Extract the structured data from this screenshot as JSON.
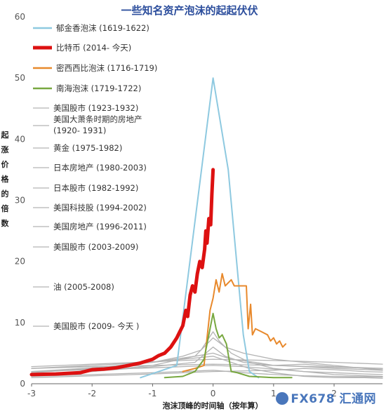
{
  "chart_data": {
    "type": "line",
    "title": "一些知名资产泡沫的起起伏伏",
    "xlabel": "泡沫顶峰的时间轴（按年算）",
    "ylabel": "起涨价格的倍数",
    "xlim": [
      -3,
      2.8
    ],
    "ylim": [
      0,
      60
    ],
    "x_ticks": [
      "-3",
      "-2",
      "-1",
      "0",
      "1",
      "2"
    ],
    "y_ticks": [
      "0",
      "10",
      "20",
      "30",
      "40",
      "50",
      "60"
    ],
    "grid": false,
    "legend_position": "left",
    "series": [
      {
        "name": "郁金香泡沫 (1619-1622)",
        "color": "#8ec9e0",
        "width": 2,
        "points": [
          [
            -1.2,
            1.0
          ],
          [
            -0.6,
            3.0
          ],
          [
            0.0,
            50.0
          ],
          [
            0.25,
            35.0
          ],
          [
            0.5,
            8.0
          ],
          [
            0.6,
            2.0
          ],
          [
            0.75,
            1.0
          ]
        ]
      },
      {
        "name": "比特币 (2014- 今天)",
        "color": "#dd1111",
        "width": 5,
        "points": [
          [
            -3.0,
            1.5
          ],
          [
            -2.6,
            1.6
          ],
          [
            -2.2,
            1.8
          ],
          [
            -2.0,
            2.3
          ],
          [
            -1.8,
            2.4
          ],
          [
            -1.6,
            2.6
          ],
          [
            -1.4,
            3.0
          ],
          [
            -1.2,
            3.4
          ],
          [
            -1.0,
            4.0
          ],
          [
            -0.9,
            4.6
          ],
          [
            -0.8,
            5.0
          ],
          [
            -0.7,
            6.0
          ],
          [
            -0.6,
            7.5
          ],
          [
            -0.55,
            8.5
          ],
          [
            -0.5,
            9.5
          ],
          [
            -0.45,
            12.0
          ],
          [
            -0.42,
            11.0
          ],
          [
            -0.38,
            14.5
          ],
          [
            -0.34,
            16.0
          ],
          [
            -0.3,
            15.0
          ],
          [
            -0.26,
            18.0
          ],
          [
            -0.22,
            20.0
          ],
          [
            -0.18,
            19.0
          ],
          [
            -0.14,
            22.0
          ],
          [
            -0.12,
            25.0
          ],
          [
            -0.1,
            23.0
          ],
          [
            -0.07,
            27.0
          ],
          [
            -0.04,
            26.0
          ],
          [
            -0.02,
            31.0
          ],
          [
            0.0,
            35.0
          ]
        ]
      },
      {
        "name": "密西西比泡沫 (1716-1719)",
        "color": "#e8892c",
        "width": 2,
        "points": [
          [
            -0.5,
            2.0
          ],
          [
            -0.3,
            2.5
          ],
          [
            -0.15,
            3.0
          ],
          [
            -0.05,
            12.0
          ],
          [
            0.0,
            14.0
          ],
          [
            0.05,
            17.0
          ],
          [
            0.1,
            15.0
          ],
          [
            0.15,
            18.0
          ],
          [
            0.2,
            16.0
          ],
          [
            0.3,
            17.0
          ],
          [
            0.35,
            16.0
          ],
          [
            0.55,
            16.0
          ],
          [
            0.58,
            9.0
          ],
          [
            0.62,
            13.0
          ],
          [
            0.65,
            8.0
          ],
          [
            0.7,
            9.0
          ],
          [
            0.8,
            8.5
          ],
          [
            0.9,
            8.0
          ],
          [
            0.95,
            7.0
          ],
          [
            1.0,
            7.5
          ],
          [
            1.05,
            6.5
          ],
          [
            1.1,
            7.0
          ],
          [
            1.15,
            6.0
          ],
          [
            1.2,
            6.5
          ]
        ]
      },
      {
        "name": "南海泡沫 (1719-1722)",
        "color": "#78a840",
        "width": 2,
        "points": [
          [
            -0.8,
            1.0
          ],
          [
            -0.5,
            1.2
          ],
          [
            -0.3,
            2.0
          ],
          [
            -0.15,
            4.0
          ],
          [
            -0.05,
            9.0
          ],
          [
            0.0,
            11.5
          ],
          [
            0.05,
            9.0
          ],
          [
            0.1,
            7.5
          ],
          [
            0.15,
            8.0
          ],
          [
            0.22,
            6.5
          ],
          [
            0.3,
            2.0
          ],
          [
            0.4,
            1.8
          ],
          [
            0.6,
            1.2
          ],
          [
            1.0,
            1.0
          ],
          [
            1.3,
            1.0
          ]
        ]
      },
      {
        "name": "美国股市 (1923-1932)",
        "color": "#b3b3b3",
        "width": 1.3,
        "points": [
          [
            -3.0,
            2.5
          ],
          [
            -2.0,
            3.0
          ],
          [
            -1.0,
            3.5
          ],
          [
            -0.5,
            4.0
          ],
          [
            0.0,
            4.5
          ],
          [
            0.3,
            3.5
          ],
          [
            0.6,
            2.5
          ],
          [
            1.0,
            1.8
          ],
          [
            1.5,
            1.2
          ],
          [
            2.0,
            1.0
          ],
          [
            2.5,
            1.0
          ],
          [
            2.8,
            0.9
          ]
        ]
      },
      {
        "name": "美国大萧条时期的房地产 (1920- 1931)",
        "color": "#b3b3b3",
        "width": 1.3,
        "points": [
          [
            -3.0,
            2.0
          ],
          [
            -2.0,
            2.3
          ],
          [
            -1.0,
            2.6
          ],
          [
            0.0,
            3.0
          ],
          [
            0.5,
            2.8
          ],
          [
            1.0,
            2.4
          ],
          [
            1.5,
            2.0
          ],
          [
            2.0,
            1.8
          ],
          [
            2.5,
            1.6
          ],
          [
            2.8,
            1.5
          ]
        ]
      },
      {
        "name": "黄金 (1975-1982)",
        "color": "#b3b3b3",
        "width": 1.3,
        "points": [
          [
            -3.0,
            1.5
          ],
          [
            -2.0,
            2.0
          ],
          [
            -1.0,
            3.0
          ],
          [
            -0.3,
            4.5
          ],
          [
            0.0,
            7.5
          ],
          [
            0.2,
            6.0
          ],
          [
            0.5,
            5.0
          ],
          [
            1.0,
            4.0
          ],
          [
            1.5,
            3.5
          ],
          [
            2.0,
            3.0
          ],
          [
            2.5,
            2.5
          ],
          [
            2.8,
            2.3
          ]
        ]
      },
      {
        "name": "日本房地产 (1980-2003)",
        "color": "#b3b3b3",
        "width": 1.3,
        "points": [
          [
            -3.0,
            2.8
          ],
          [
            -2.0,
            3.2
          ],
          [
            -1.0,
            3.6
          ],
          [
            0.0,
            4.0
          ],
          [
            1.0,
            3.8
          ],
          [
            2.0,
            3.5
          ],
          [
            2.8,
            3.2
          ]
        ]
      },
      {
        "name": "日本股市 (1982-1992)",
        "color": "#b3b3b3",
        "width": 1.3,
        "points": [
          [
            -3.0,
            2.0
          ],
          [
            -2.0,
            2.6
          ],
          [
            -1.0,
            3.5
          ],
          [
            -0.3,
            4.5
          ],
          [
            0.0,
            5.0
          ],
          [
            0.3,
            4.0
          ],
          [
            0.7,
            3.5
          ],
          [
            1.0,
            3.0
          ],
          [
            1.5,
            3.2
          ],
          [
            2.0,
            2.8
          ],
          [
            2.8,
            2.5
          ]
        ]
      },
      {
        "name": "美国科技股 (1994-2002)",
        "color": "#b3b3b3",
        "width": 1.3,
        "points": [
          [
            -3.0,
            1.8
          ],
          [
            -2.0,
            2.5
          ],
          [
            -1.0,
            3.5
          ],
          [
            -0.5,
            4.5
          ],
          [
            -0.2,
            5.5
          ],
          [
            0.0,
            8.5
          ],
          [
            0.1,
            7.0
          ],
          [
            0.3,
            5.0
          ],
          [
            0.6,
            3.5
          ],
          [
            1.0,
            2.5
          ],
          [
            1.5,
            2.0
          ],
          [
            2.0,
            1.5
          ],
          [
            2.5,
            1.3
          ],
          [
            2.8,
            1.2
          ]
        ]
      },
      {
        "name": "美国房地产 (1996-2011)",
        "color": "#b3b3b3",
        "width": 1.3,
        "points": [
          [
            -3.0,
            2.5
          ],
          [
            -2.0,
            2.8
          ],
          [
            -1.0,
            3.0
          ],
          [
            0.0,
            3.2
          ],
          [
            1.0,
            3.0
          ],
          [
            2.0,
            2.7
          ],
          [
            2.8,
            2.5
          ]
        ]
      },
      {
        "name": "美国股市 (2003-2009)",
        "color": "#b3b3b3",
        "width": 1.3,
        "points": [
          [
            -3.0,
            1.2
          ],
          [
            -2.0,
            1.5
          ],
          [
            -1.0,
            1.8
          ],
          [
            0.0,
            2.2
          ],
          [
            0.5,
            1.8
          ],
          [
            1.0,
            1.5
          ],
          [
            1.5,
            1.3
          ],
          [
            2.0,
            1.2
          ],
          [
            2.8,
            1.1
          ]
        ]
      },
      {
        "name": "油 (2005-2008)",
        "color": "#b3b3b3",
        "width": 1.3,
        "points": [
          [
            -3.0,
            1.5
          ],
          [
            -2.0,
            2.0
          ],
          [
            -1.0,
            2.8
          ],
          [
            -0.3,
            3.5
          ],
          [
            0.0,
            6.0
          ],
          [
            0.2,
            4.5
          ],
          [
            0.5,
            3.5
          ],
          [
            1.0,
            3.0
          ],
          [
            1.5,
            2.8
          ],
          [
            2.0,
            2.5
          ],
          [
            2.8,
            2.2
          ]
        ]
      },
      {
        "name": "美国股市 (2009- 今天 )",
        "color": "#b3b3b3",
        "width": 1.3,
        "points": [
          [
            -3.0,
            1.0
          ],
          [
            -2.0,
            1.3
          ],
          [
            -1.0,
            1.6
          ],
          [
            0.0,
            2.0
          ],
          [
            1.0,
            2.2
          ],
          [
            1.5,
            2.5
          ],
          [
            2.0,
            2.3
          ],
          [
            2.5,
            2.0
          ],
          [
            2.8,
            1.9
          ]
        ]
      }
    ]
  },
  "watermark": {
    "text": "FX678 汇通网"
  }
}
